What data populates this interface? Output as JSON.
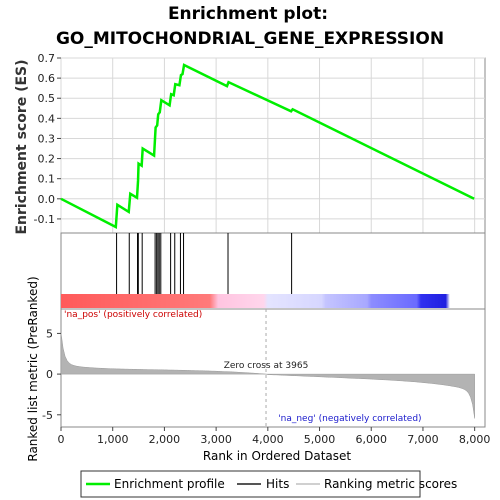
{
  "chart_data": {
    "type": "line",
    "title_line1": "Enrichment plot:",
    "title_line2": "GO_MITOCHONDRIAL_GENE_EXPRESSION",
    "ylabel_top": "Enrichment score (ES)",
    "ylabel_bottom": "Ranked list metric (PreRanked)",
    "xlabel": "Rank in Ordered Dataset",
    "xlim": [
      0,
      8200
    ],
    "xticks": [
      0,
      1000,
      2000,
      3000,
      4000,
      5000,
      6000,
      7000,
      8000
    ],
    "xtick_labels": [
      "0",
      "1,000",
      "2,000",
      "3,000",
      "4,000",
      "5,000",
      "6,000",
      "7,000",
      "8,000"
    ],
    "es_ylim": [
      -0.17,
      0.7
    ],
    "es_yticks": [
      -0.1,
      0.0,
      0.1,
      0.2,
      0.3,
      0.4,
      0.5,
      0.6,
      0.7
    ],
    "es_ytick_labels": [
      "-0.1",
      "0.0",
      "0.1",
      "0.2",
      "0.3",
      "0.4",
      "0.5",
      "0.6",
      "0.7"
    ],
    "metric_ylim": [
      -6.5,
      8.0
    ],
    "metric_yticks": [
      -5,
      0,
      5
    ],
    "metric_ytick_labels": [
      "-5",
      "0",
      "5"
    ],
    "enrichment_profile": {
      "x": [
        0,
        1060,
        1090,
        1310,
        1340,
        1470,
        1490,
        1500,
        1560,
        1580,
        1800,
        1830,
        1860,
        1880,
        1910,
        1940,
        2100,
        2130,
        2180,
        2210,
        2290,
        2320,
        2350,
        2380,
        3210,
        3240,
        4450,
        4480,
        7990
      ],
      "y": [
        0.0,
        -0.14,
        -0.03,
        -0.065,
        0.025,
        0.005,
        0.09,
        0.175,
        0.165,
        0.25,
        0.215,
        0.355,
        0.365,
        0.42,
        0.43,
        0.49,
        0.465,
        0.52,
        0.515,
        0.57,
        0.565,
        0.615,
        0.62,
        0.665,
        0.56,
        0.58,
        0.435,
        0.445,
        0.0
      ]
    },
    "hits": [
      1075,
      1320,
      1480,
      1495,
      1570,
      1820,
      1850,
      1875,
      1900,
      1930,
      2120,
      2200,
      2310,
      2370,
      3230,
      4460
    ],
    "zero_cross_rank": 3965,
    "zero_cross_label": "Zero cross at 3965",
    "pos_label": "'na_pos' (positively correlated)",
    "neg_label": "'na_neg' (negatively correlated)",
    "n_genes": 8000,
    "colors": {
      "profile": "#00ee00",
      "hits": "#000000",
      "pos": "#e8002a",
      "neg": "#0000ff",
      "metric_fill": "#b3b3b3",
      "pos_text": "#cc0000",
      "neg_text": "#1a1acc"
    },
    "legend": {
      "items": [
        "Enrichment profile",
        "Hits",
        "Ranking metric scores"
      ]
    }
  }
}
